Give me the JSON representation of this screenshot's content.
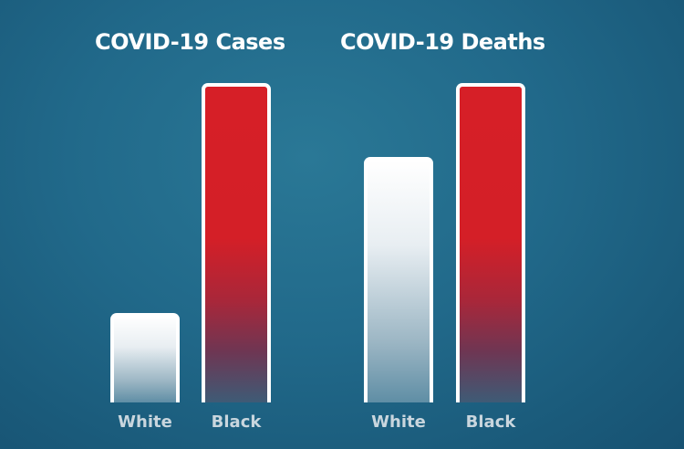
{
  "chart_data": [
    {
      "type": "bar",
      "title": "COVID-19 Cases",
      "categories": [
        "White",
        "Black"
      ],
      "values": [
        28,
        100
      ],
      "colors": [
        "#ffffff",
        "#d41f27"
      ],
      "ylim": [
        0,
        100
      ]
    },
    {
      "type": "bar",
      "title": "COVID-19 Deaths",
      "categories": [
        "White",
        "Black"
      ],
      "values": [
        77,
        100
      ],
      "colors": [
        "#ffffff",
        "#d41f27"
      ],
      "ylim": [
        0,
        100
      ]
    }
  ]
}
